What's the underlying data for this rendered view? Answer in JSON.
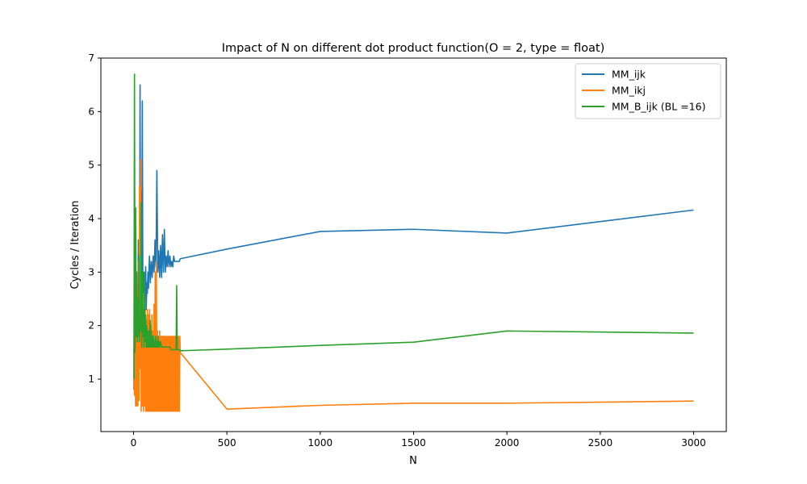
{
  "chart_data": {
    "type": "line",
    "title": "Impact of N on different dot product function(O = 2, type = float)",
    "xlabel": "N",
    "ylabel": "Cycles / Iteration",
    "xlim": [
      -175,
      3175
    ],
    "ylim": [
      0.02,
      7.0
    ],
    "xticks": [
      0,
      500,
      1000,
      1500,
      2000,
      2500,
      3000
    ],
    "yticks": [
      1,
      2,
      3,
      4,
      5,
      6,
      7
    ],
    "grid": false,
    "legend_position": "top-right",
    "series": [
      {
        "name": "MM_ijk",
        "color": "#1f77b4",
        "x": [
          2,
          5,
          8,
          11,
          14,
          17,
          20,
          23,
          26,
          29,
          32,
          35,
          38,
          41,
          44,
          47,
          50,
          53,
          56,
          59,
          62,
          65,
          68,
          71,
          74,
          77,
          80,
          85,
          90,
          95,
          100,
          105,
          110,
          115,
          120,
          125,
          130,
          135,
          140,
          145,
          150,
          155,
          160,
          165,
          170,
          175,
          180,
          185,
          190,
          195,
          200,
          205,
          210,
          215,
          220,
          225,
          230,
          235,
          240,
          245,
          250,
          500,
          1000,
          1500,
          2000,
          3000
        ],
        "y": [
          0.8,
          3.3,
          1.2,
          2.6,
          1.5,
          2.1,
          1.8,
          2.4,
          3.6,
          2.0,
          2.3,
          6.5,
          2.4,
          4.5,
          2.6,
          6.2,
          2.5,
          3.0,
          2.4,
          2.8,
          2.5,
          3.1,
          2.3,
          2.8,
          2.6,
          3.0,
          2.7,
          3.3,
          2.8,
          3.2,
          2.9,
          3.3,
          3.0,
          3.6,
          3.1,
          4.9,
          3.0,
          3.4,
          2.9,
          3.5,
          2.9,
          3.7,
          3.0,
          3.8,
          3.0,
          3.3,
          3.1,
          3.4,
          3.1,
          3.3,
          3.1,
          3.2,
          3.1,
          3.3,
          3.2,
          3.2,
          3.2,
          3.2,
          3.2,
          3.2,
          3.25,
          3.43,
          3.76,
          3.8,
          3.73,
          4.16
        ]
      },
      {
        "name": "MM_ikj",
        "color": "#ff7f0e",
        "x": [
          2,
          5,
          8,
          11,
          14,
          17,
          20,
          23,
          26,
          29,
          32,
          35,
          38,
          41,
          44,
          47,
          50,
          53,
          56,
          59,
          62,
          65,
          68,
          71,
          74,
          77,
          80,
          83,
          86,
          89,
          92,
          95,
          98,
          101,
          104,
          107,
          110,
          113,
          116,
          119,
          122,
          125,
          128,
          131,
          134,
          137,
          140,
          143,
          146,
          149,
          152,
          155,
          158,
          161,
          164,
          167,
          170,
          173,
          176,
          179,
          182,
          185,
          188,
          191,
          194,
          197,
          200,
          203,
          206,
          209,
          212,
          215,
          218,
          221,
          224,
          227,
          230,
          233,
          236,
          239,
          242,
          245,
          248,
          250,
          500,
          1000,
          1500,
          2000,
          3000
        ],
        "y": [
          1.7,
          0.7,
          1.8,
          0.5,
          2.2,
          0.5,
          1.9,
          0.5,
          3.2,
          0.6,
          4.6,
          1.2,
          5.1,
          0.4,
          2.4,
          0.5,
          2.4,
          0.4,
          2.6,
          0.5,
          2.3,
          0.4,
          2.1,
          0.4,
          2.3,
          0.4,
          2.2,
          0.4,
          2.3,
          0.4,
          2.0,
          0.4,
          2.2,
          0.4,
          1.9,
          0.4,
          2.4,
          0.4,
          3.0,
          0.4,
          3.2,
          0.4,
          1.9,
          0.4,
          1.8,
          0.4,
          1.9,
          0.4,
          1.8,
          0.4,
          1.8,
          0.4,
          1.8,
          0.4,
          1.8,
          0.4,
          1.8,
          0.4,
          1.8,
          0.4,
          1.8,
          0.4,
          1.8,
          0.4,
          1.8,
          0.4,
          1.8,
          0.4,
          1.8,
          0.4,
          1.8,
          0.4,
          1.8,
          0.4,
          1.8,
          0.4,
          1.8,
          0.4,
          1.8,
          0.4,
          1.8,
          0.4,
          1.8,
          1.5,
          0.44,
          0.51,
          0.55,
          0.55,
          0.59
        ]
      },
      {
        "name": "MM_B_ijk (BL =16)",
        "color": "#2ca02c",
        "x": [
          2,
          5,
          8,
          11,
          14,
          17,
          20,
          23,
          26,
          29,
          32,
          35,
          38,
          41,
          44,
          47,
          50,
          53,
          56,
          59,
          62,
          65,
          68,
          71,
          74,
          77,
          80,
          83,
          86,
          89,
          92,
          95,
          98,
          101,
          104,
          107,
          110,
          113,
          116,
          119,
          122,
          125,
          128,
          131,
          134,
          137,
          140,
          145,
          150,
          155,
          160,
          165,
          170,
          175,
          180,
          185,
          190,
          195,
          200,
          205,
          210,
          215,
          220,
          225,
          228,
          231,
          234,
          237,
          240,
          245,
          250,
          500,
          1000,
          1500,
          2000,
          3000
        ],
        "y": [
          1.0,
          6.7,
          1.5,
          4.2,
          1.8,
          3.0,
          1.7,
          2.5,
          1.8,
          3.3,
          1.7,
          2.0,
          1.9,
          4.3,
          1.6,
          3.0,
          1.8,
          2.3,
          1.6,
          3.0,
          1.7,
          2.2,
          1.6,
          2.0,
          1.6,
          1.9,
          1.6,
          1.9,
          1.6,
          2.1,
          1.6,
          1.9,
          1.6,
          1.8,
          1.6,
          1.8,
          1.6,
          1.7,
          1.6,
          1.8,
          1.6,
          1.7,
          1.6,
          1.8,
          1.6,
          1.7,
          1.6,
          1.7,
          1.6,
          1.6,
          1.6,
          1.6,
          1.6,
          1.6,
          1.6,
          1.6,
          1.6,
          1.6,
          1.55,
          1.55,
          1.55,
          1.55,
          1.55,
          1.55,
          1.55,
          2.75,
          1.55,
          1.55,
          1.55,
          1.55,
          1.53,
          1.56,
          1.63,
          1.69,
          1.9,
          1.86
        ]
      }
    ]
  }
}
